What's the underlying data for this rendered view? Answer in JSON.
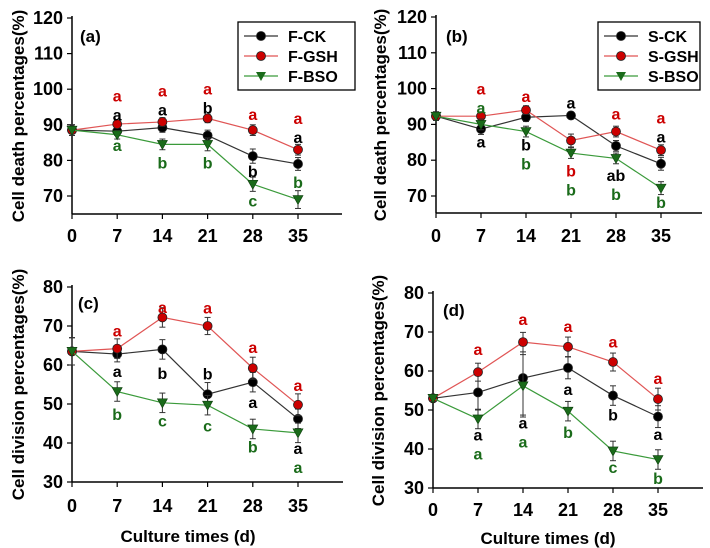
{
  "chart_data": [
    {
      "type": "line",
      "panel_label": "(a)",
      "ylabel": "Cell death percentages(%)",
      "xlabel": "",
      "x": [
        0,
        7,
        14,
        21,
        28,
        35
      ],
      "xticks": [
        0,
        7,
        14,
        21,
        28,
        35
      ],
      "yticks": [
        70,
        80,
        90,
        100,
        110,
        120
      ],
      "ylim": [
        65,
        120
      ],
      "legend_position": "top-right",
      "series": [
        {
          "name": "F-CK",
          "color": "#000000",
          "marker": "circle",
          "values": [
            88.5,
            88.2,
            89.2,
            87.0,
            81.2,
            79.0
          ],
          "error": [
            1.5,
            1.2,
            1.3,
            1.5,
            2.0,
            1.8
          ]
        },
        {
          "name": "F-GSH",
          "color": "#cc0000",
          "marker": "circle",
          "values": [
            88.5,
            90.2,
            90.8,
            91.8,
            88.5,
            83.0
          ],
          "error": [
            1.5,
            1.0,
            1.2,
            1.2,
            1.5,
            1.5
          ]
        },
        {
          "name": "F-BSO",
          "color": "#1a6b1a",
          "marker": "triangle-down",
          "values": [
            88.5,
            87.2,
            84.5,
            84.5,
            73.3,
            69.0
          ],
          "error": [
            1.5,
            1.2,
            1.5,
            1.8,
            2.0,
            2.5
          ]
        }
      ],
      "annotations": [
        {
          "x": 7,
          "y": 97.5,
          "text": "a",
          "color": "#cc0000"
        },
        {
          "x": 7,
          "y": 94.2,
          "text": "a",
          "color": "#000000"
        },
        {
          "x": 7,
          "y": 83.7,
          "text": "a",
          "color": "#1a6b1a"
        },
        {
          "x": 14,
          "y": 99.3,
          "text": "a",
          "color": "#cc0000"
        },
        {
          "x": 14,
          "y": 94.8,
          "text": "a",
          "color": "#000000"
        },
        {
          "x": 14,
          "y": 79.2,
          "text": "b",
          "color": "#1a6b1a"
        },
        {
          "x": 21,
          "y": 100.0,
          "text": "a",
          "color": "#cc0000"
        },
        {
          "x": 21,
          "y": 95.1,
          "text": "b",
          "color": "#000000"
        },
        {
          "x": 21,
          "y": 79.2,
          "text": "b",
          "color": "#1a6b1a"
        },
        {
          "x": 28,
          "y": 93.0,
          "text": "a",
          "color": "#cc0000"
        },
        {
          "x": 28,
          "y": 77.0,
          "text": "b",
          "color": "#000000"
        },
        {
          "x": 28,
          "y": 68.8,
          "text": "c",
          "color": "#1a6b1a"
        },
        {
          "x": 35,
          "y": 91.5,
          "text": "a",
          "color": "#cc0000"
        },
        {
          "x": 35,
          "y": 87.6,
          "text": "a",
          "color": "#000000"
        },
        {
          "x": 35,
          "y": 73.5,
          "text": "b",
          "color": "#1a6b1a"
        }
      ]
    },
    {
      "type": "line",
      "panel_label": "(b)",
      "ylabel": "Cell death percentages(%)",
      "xlabel": "",
      "x": [
        0,
        7,
        14,
        21,
        28,
        35
      ],
      "xticks": [
        0,
        7,
        14,
        21,
        28,
        35
      ],
      "yticks": [
        70,
        80,
        90,
        100,
        110,
        120
      ],
      "ylim": [
        65,
        120
      ],
      "legend_position": "top-right",
      "series": [
        {
          "name": "S-CK",
          "color": "#000000",
          "marker": "circle",
          "values": [
            92.3,
            88.7,
            92.0,
            92.5,
            84.0,
            79.0
          ],
          "error": [
            1.2,
            1.5,
            1.2,
            1.0,
            1.5,
            1.8
          ]
        },
        {
          "name": "S-GSH",
          "color": "#cc0000",
          "marker": "circle",
          "values": [
            92.3,
            92.3,
            94.0,
            85.5,
            88.0,
            82.8
          ],
          "error": [
            1.2,
            1.0,
            1.2,
            1.8,
            1.5,
            1.5
          ]
        },
        {
          "name": "S-BSO",
          "color": "#1a6b1a",
          "marker": "triangle-down",
          "values": [
            92.3,
            90.0,
            88.0,
            82.0,
            80.5,
            72.2
          ],
          "error": [
            1.2,
            1.5,
            1.5,
            1.5,
            1.5,
            1.8
          ]
        }
      ],
      "annotations": [
        {
          "x": 7,
          "y": 99.5,
          "text": "a",
          "color": "#cc0000"
        },
        {
          "x": 7,
          "y": 95.9,
          "text": "a",
          "color": "#1a6b1a"
        },
        {
          "x": 7,
          "y": 84.6,
          "text": "a",
          "color": "#000000"
        },
        {
          "x": 14,
          "y": 97.6,
          "text": "a",
          "color": "#cc0000"
        },
        {
          "x": 14,
          "y": 84.0,
          "text": "b",
          "color": "#000000"
        },
        {
          "x": 14,
          "y": 79.9,
          "text": "b",
          "color": "#1a6b1a"
        },
        {
          "x": 21,
          "y": 95.9,
          "text": "a",
          "color": "#000000"
        },
        {
          "x": 21,
          "y": 76.8,
          "text": "b",
          "color": "#cc0000"
        },
        {
          "x": 21,
          "y": 72.3,
          "text": "b",
          "color": "#1a6b1a"
        },
        {
          "x": 28,
          "y": 92.9,
          "text": "a",
          "color": "#cc0000"
        },
        {
          "x": 28,
          "y": 75.6,
          "text": "ab",
          "color": "#000000"
        },
        {
          "x": 28,
          "y": 70.9,
          "text": "b",
          "color": "#1a6b1a"
        },
        {
          "x": 35,
          "y": 91.5,
          "text": "a",
          "color": "#cc0000"
        },
        {
          "x": 35,
          "y": 87.5,
          "text": "a",
          "color": "#000000"
        },
        {
          "x": 35,
          "y": 67.9,
          "text": "b",
          "color": "#1a6b1a"
        }
      ]
    },
    {
      "type": "line",
      "panel_label": "(c)",
      "ylabel": "Cell division percentages(%)",
      "xlabel": "Culture times (d)",
      "x": [
        0,
        7,
        14,
        21,
        28,
        35
      ],
      "xticks": [
        0,
        7,
        14,
        21,
        28,
        35
      ],
      "yticks": [
        30,
        40,
        50,
        60,
        70,
        80
      ],
      "ylim": [
        30,
        80
      ],
      "series": [
        {
          "name": "F-CK",
          "color": "#000000",
          "marker": "circle",
          "values": [
            63.5,
            62.8,
            64.0,
            52.5,
            55.6,
            46.2
          ],
          "error": [
            3.5,
            2.0,
            2.5,
            3.0,
            2.5,
            2.5
          ]
        },
        {
          "name": "F-GSH",
          "color": "#cc0000",
          "marker": "circle",
          "values": [
            63.5,
            64.2,
            72.2,
            70.0,
            59.2,
            49.8
          ],
          "error": [
            3.5,
            2.5,
            2.5,
            2.2,
            2.8,
            2.8
          ]
        },
        {
          "name": "F-BSO",
          "color": "#1a6b1a",
          "marker": "triangle-down",
          "values": [
            63.5,
            53.2,
            50.3,
            49.7,
            43.6,
            42.6
          ],
          "error": [
            3.5,
            2.5,
            2.5,
            2.5,
            2.5,
            2.5
          ]
        }
      ],
      "annotations": [
        {
          "x": 7,
          "y": 68.9,
          "text": "a",
          "color": "#cc0000"
        },
        {
          "x": 7,
          "y": 58.5,
          "text": "a",
          "color": "#000000"
        },
        {
          "x": 7,
          "y": 47.5,
          "text": "b",
          "color": "#1a6b1a"
        },
        {
          "x": 14,
          "y": 74.9,
          "text": "a",
          "color": "#cc0000"
        },
        {
          "x": 14,
          "y": 58.0,
          "text": "b",
          "color": "#000000"
        },
        {
          "x": 14,
          "y": 45.8,
          "text": "c",
          "color": "#1a6b1a"
        },
        {
          "x": 21,
          "y": 74.7,
          "text": "a",
          "color": "#cc0000"
        },
        {
          "x": 21,
          "y": 57.8,
          "text": "b",
          "color": "#000000"
        },
        {
          "x": 21,
          "y": 44.5,
          "text": "c",
          "color": "#1a6b1a"
        },
        {
          "x": 28,
          "y": 64.6,
          "text": "a",
          "color": "#cc0000"
        },
        {
          "x": 28,
          "y": 50.5,
          "text": "a",
          "color": "#000000"
        },
        {
          "x": 28,
          "y": 39.1,
          "text": "b",
          "color": "#1a6b1a"
        },
        {
          "x": 35,
          "y": 54.5,
          "text": "a",
          "color": "#cc0000"
        },
        {
          "x": 35,
          "y": 38.3,
          "text": "a",
          "color": "#000000"
        },
        {
          "x": 35,
          "y": 34.7,
          "text": "a",
          "color": "#1a6b1a"
        }
      ]
    },
    {
      "type": "line",
      "panel_label": "(d)",
      "ylabel": "Cell division percentages(%)",
      "xlabel": "Culture times (d)",
      "x": [
        0,
        7,
        14,
        21,
        28,
        35
      ],
      "xticks": [
        0,
        7,
        14,
        21,
        28,
        35
      ],
      "yticks": [
        30,
        40,
        50,
        60,
        70,
        80
      ],
      "ylim": [
        30,
        80
      ],
      "series": [
        {
          "name": "S-CK",
          "color": "#000000",
          "marker": "circle",
          "values": [
            53.0,
            54.5,
            58.2,
            60.8,
            53.7,
            48.3
          ],
          "error": [
            0.8,
            4.5,
            9.5,
            2.8,
            2.5,
            2.8
          ]
        },
        {
          "name": "S-GSH",
          "color": "#cc0000",
          "marker": "circle",
          "values": [
            53.0,
            59.7,
            67.4,
            66.2,
            62.3,
            52.8
          ],
          "error": [
            0.8,
            2.3,
            2.5,
            2.5,
            2.3,
            2.8
          ]
        },
        {
          "name": "S-BSO",
          "color": "#1a6b1a",
          "marker": "triangle-down",
          "values": [
            53.0,
            47.7,
            56.2,
            49.7,
            39.5,
            37.3
          ],
          "error": [
            0.8,
            2.5,
            8.0,
            2.5,
            2.5,
            2.5
          ]
        }
      ],
      "annotations": [
        {
          "x": 7,
          "y": 65.0,
          "text": "a",
          "color": "#cc0000"
        },
        {
          "x": 7,
          "y": 43.1,
          "text": "a",
          "color": "#000000"
        },
        {
          "x": 7,
          "y": 40.0,
          "text": "a",
          "color": "#1a6b1a"
        },
        {
          "x": 14,
          "y": 72.7,
          "text": "a",
          "color": "#cc0000"
        },
        {
          "x": 14,
          "y": 46.2,
          "text": "a",
          "color": "#000000"
        },
        {
          "x": 14,
          "y": 43.1,
          "text": "a",
          "color": "#1a6b1a"
        },
        {
          "x": 21,
          "y": 71.5,
          "text": "a",
          "color": "#cc0000"
        },
        {
          "x": 21,
          "y": 55.4,
          "text": "a",
          "color": "#000000"
        },
        {
          "x": 21,
          "y": 44.3,
          "text": "b",
          "color": "#1a6b1a"
        },
        {
          "x": 28,
          "y": 67.6,
          "text": "a",
          "color": "#cc0000"
        },
        {
          "x": 28,
          "y": 48.8,
          "text": "b",
          "color": "#000000"
        },
        {
          "x": 28,
          "y": 35.4,
          "text": "c",
          "color": "#1a6b1a"
        },
        {
          "x": 35,
          "y": 58.2,
          "text": "a",
          "color": "#cc0000"
        },
        {
          "x": 35,
          "y": 43.9,
          "text": "a",
          "color": "#000000"
        },
        {
          "x": 35,
          "y": 32.6,
          "text": "b",
          "color": "#1a6b1a"
        }
      ]
    }
  ]
}
